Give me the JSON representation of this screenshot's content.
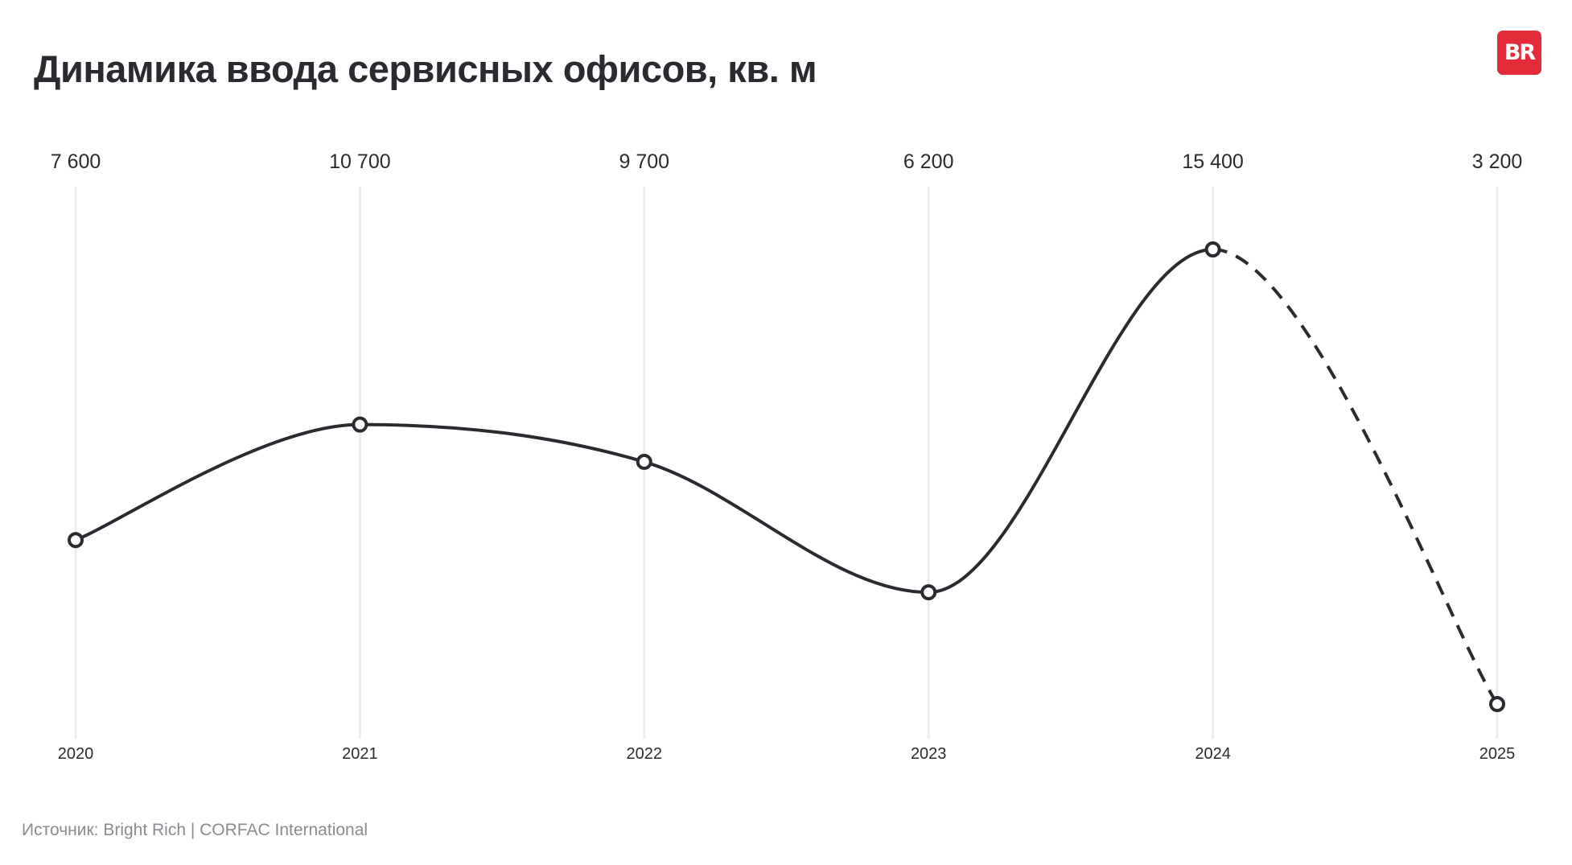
{
  "title": "Динамика ввода сервисных офисов, кв. м",
  "logo_text": "BR",
  "source": "Источник: Bright Rich | CORFAC International",
  "colors": {
    "line": "#2a2a30",
    "grid": "#ececef",
    "logo_bg": "#e32b3a",
    "source_text": "#8a8a90"
  },
  "chart_data": {
    "type": "line",
    "title": "Динамика ввода сервисных офисов, кв. м",
    "categories": [
      "2020",
      "2021",
      "2022",
      "2023",
      "2024",
      "2025"
    ],
    "values": [
      7600,
      10700,
      9700,
      6200,
      15400,
      3200
    ],
    "value_labels": [
      "7 600",
      "10 700",
      "9 700",
      "6 200",
      "15 400",
      "3 200"
    ],
    "smooth": true,
    "forecast_from_index": 4,
    "forecast_style": "dashed",
    "markers": "hollow-circle",
    "grid": "vertical",
    "xlabel": "",
    "ylabel": ""
  }
}
